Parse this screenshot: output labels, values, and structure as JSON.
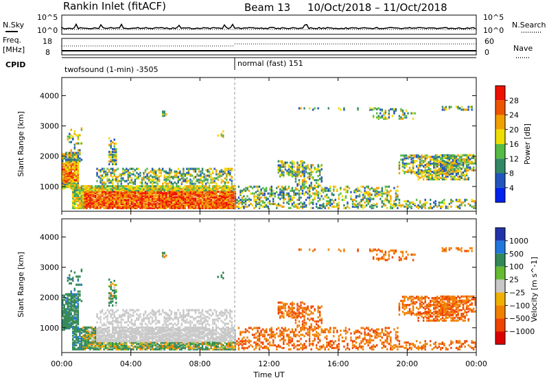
{
  "header": {
    "station": "Rankin Inlet (fitACF)",
    "beam": "Beam 13",
    "dates": "10/Oct/2018 – 11/Oct/2018"
  },
  "strips": {
    "nsky_label": "N.Sky",
    "nsky_ticks": [
      "10^5",
      "10^0"
    ],
    "nsearch_label": "N.Search",
    "nsearch_ticks": [
      "10^5",
      "10^0"
    ],
    "freq_label": "Freq.",
    "freq_unit": "[MHz]",
    "freq_ticks": [
      "18",
      "8"
    ],
    "nave_label": "Nave",
    "nave_ticks": [
      "60",
      "0"
    ],
    "cpid_label": "CPID",
    "cpid_segments": [
      {
        "label": "twofsound (1-min) -3505",
        "start_hour": 0,
        "end_hour": 10
      },
      {
        "label": "normal (fast) 151",
        "start_hour": 10,
        "end_hour": 24
      }
    ]
  },
  "chart_data": [
    {
      "type": "heatmap",
      "panel": "power",
      "ylabel": "Slant Range [km]",
      "yticks": [
        1000,
        2000,
        3000,
        4000
      ],
      "ylim": [
        180,
        4600
      ],
      "colorbar": {
        "label": "Power [dB]",
        "ticks": [
          4,
          8,
          12,
          16,
          20,
          24,
          28
        ],
        "range": [
          0,
          32
        ],
        "colors": [
          "#0022ee",
          "#2255bb",
          "#338866",
          "#55bb44",
          "#eedd00",
          "#f0a000",
          "#ee5500",
          "#ee1100"
        ]
      }
    },
    {
      "type": "heatmap",
      "panel": "velocity",
      "ylabel": "Slant Range [km]",
      "yticks": [
        1000,
        2000,
        3000,
        4000
      ],
      "ylim": [
        180,
        4600
      ],
      "colorbar": {
        "label": "Velocity [m s^-1]",
        "ticks": [
          "1000",
          "500",
          "100",
          "25",
          "−25",
          "−100",
          "−500",
          "−1000"
        ],
        "colors": [
          "#2233aa",
          "#2277dd",
          "#338855",
          "#66bb33",
          "#c8c8c8",
          "#f0b000",
          "#f08000",
          "#ee4400",
          "#dd0000"
        ]
      }
    }
  ],
  "xaxis": {
    "label": "Time UT",
    "ticks": [
      "00:00",
      "04:00",
      "08:00",
      "12:00",
      "16:00",
      "20:00",
      "00:00"
    ],
    "range_hours": [
      0,
      24
    ]
  }
}
